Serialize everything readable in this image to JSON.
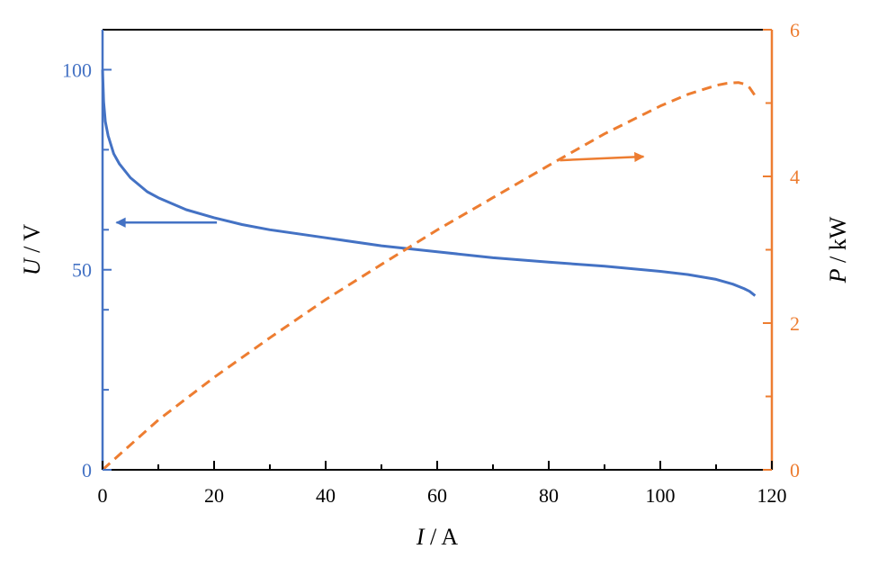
{
  "chart_data": {
    "type": "line",
    "xlabel": {
      "symbol": "I",
      "unit": "A"
    },
    "ylabel_left": {
      "symbol": "U",
      "unit": "V"
    },
    "ylabel_right": {
      "symbol": "P",
      "unit": "kW"
    },
    "xlim": [
      0,
      120
    ],
    "ylim_left": [
      0,
      110
    ],
    "ylim_right": [
      0,
      6
    ],
    "x_ticks": [
      "0",
      "20",
      "40",
      "60",
      "80",
      "100",
      "120"
    ],
    "y_left_ticks": [
      "0",
      "50",
      "100"
    ],
    "y_right_ticks": [
      "0",
      "2",
      "4",
      "6"
    ],
    "grid": false,
    "colors": {
      "voltage": "#4472c4",
      "power": "#ed7d31",
      "axis": "#000000"
    },
    "series": [
      {
        "axis": "left",
        "style": "solid",
        "x": [
          0,
          0.2,
          0.5,
          1,
          2,
          3,
          5,
          8,
          10,
          15,
          20,
          25,
          30,
          40,
          50,
          60,
          70,
          80,
          90,
          100,
          105,
          110,
          113,
          115,
          116,
          117
        ],
        "y": [
          100,
          92,
          87,
          83.5,
          79,
          76.5,
          73,
          69.5,
          68,
          65,
          63,
          61.3,
          60,
          58,
          56,
          54.5,
          53,
          51.9,
          50.9,
          49.6,
          48.8,
          47.6,
          46.4,
          45.3,
          44.6,
          43.5
        ]
      },
      {
        "axis": "right",
        "style": "dashed",
        "x": [
          0,
          10,
          20,
          30,
          40,
          50,
          60,
          70,
          80,
          90,
          100,
          105,
          110,
          112,
          114,
          115,
          116,
          117
        ],
        "y": [
          0,
          0.68,
          1.26,
          1.8,
          2.32,
          2.8,
          3.27,
          3.71,
          4.15,
          4.58,
          4.96,
          5.12,
          5.24,
          5.27,
          5.28,
          5.26,
          5.21,
          5.1
        ]
      }
    ],
    "annotations": [
      {
        "type": "arrow",
        "target_axis": "left",
        "direction": "left",
        "from": [
          20.5,
          61.8
        ],
        "to": [
          2.5,
          61.8
        ]
      },
      {
        "type": "arrow",
        "target_axis": "right",
        "direction": "right",
        "from": [
          82,
          4.22
        ],
        "to": [
          97,
          4.27
        ]
      }
    ]
  }
}
